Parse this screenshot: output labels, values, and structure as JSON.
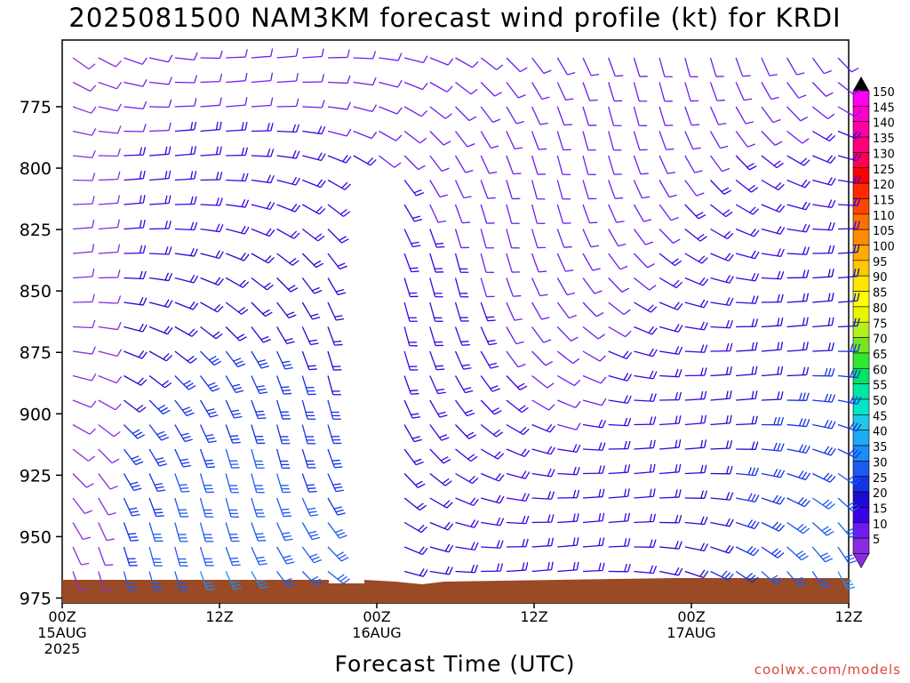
{
  "title": "2025081500 NAM3KM forecast wind profile (kt) for KRDI",
  "xlabel": "Forecast Time (UTC)",
  "credit": "coolwx.com/models",
  "chart_data": {
    "type": "wind_barb_time_height",
    "xlim_hours": [
      0,
      60
    ],
    "ylim_hpa": [
      955,
      977
    ],
    "y_scale": "reversed",
    "yticks": [
      975,
      950,
      925,
      900,
      875,
      850,
      825,
      800,
      775
    ],
    "xticks": [
      {
        "hour": 0,
        "lines": [
          "00Z",
          "15AUG",
          "2025"
        ]
      },
      {
        "hour": 12,
        "lines": [
          "12Z"
        ]
      },
      {
        "hour": 24,
        "lines": [
          "00Z",
          "16AUG"
        ]
      },
      {
        "hour": 36,
        "lines": [
          "12Z"
        ]
      },
      {
        "hour": 48,
        "lines": [
          "00Z",
          "17AUG"
        ]
      },
      {
        "hour": 60,
        "lines": [
          "12Z"
        ]
      }
    ],
    "colorbar": {
      "levels": [
        5,
        10,
        15,
        20,
        25,
        30,
        35,
        40,
        45,
        50,
        55,
        60,
        65,
        70,
        75,
        80,
        85,
        90,
        95,
        100,
        105,
        110,
        115,
        120,
        125,
        130,
        135,
        140,
        145,
        150
      ],
      "colors": [
        "#8a2be2",
        "#6e1bf0",
        "#3c00e6",
        "#1e0ad2",
        "#1432e6",
        "#1e5af0",
        "#1e8cf5",
        "#1eaaf5",
        "#1ec8e6",
        "#00e6c8",
        "#00e6a0",
        "#00e664",
        "#32e632",
        "#78e61e",
        "#b4f01e",
        "#e6f500",
        "#ffff00",
        "#ffe600",
        "#ffc800",
        "#ffaa00",
        "#ff8c00",
        "#ff6e00",
        "#ff4600",
        "#ff2800",
        "#ff0000",
        "#ff0050",
        "#ff0078",
        "#ff00a0",
        "#ff00c8",
        "#ff00f0"
      ]
    },
    "terrain_color": "#9a4a24",
    "grid": false
  }
}
